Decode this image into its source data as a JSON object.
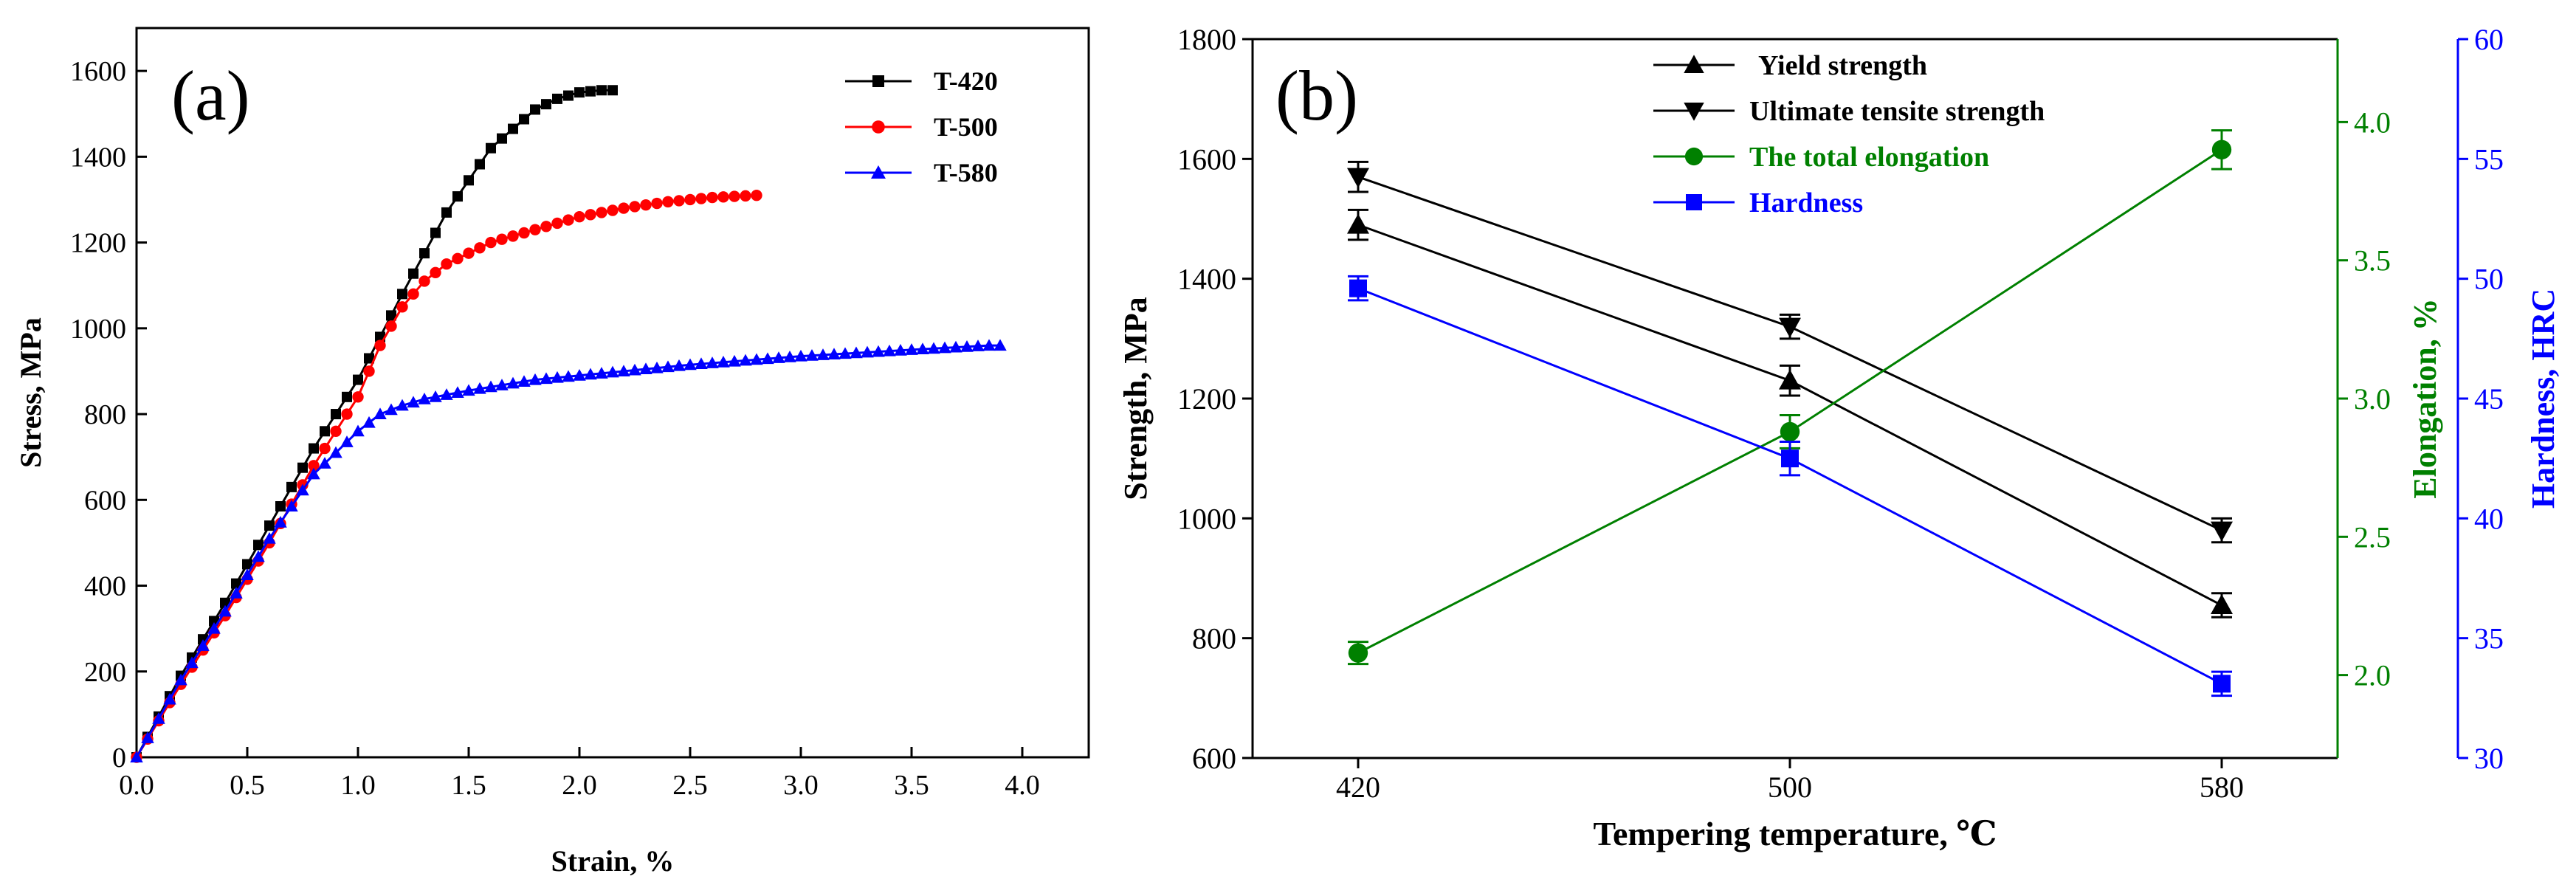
{
  "chart_data": [
    {
      "type": "line",
      "panel_label": "(a)",
      "xlabel": "Strain, %",
      "ylabel": "Stress, MPa",
      "xlim": [
        0,
        4.3
      ],
      "ylim": [
        0,
        1700
      ],
      "xticks": [
        0.0,
        0.5,
        1.0,
        1.5,
        2.0,
        2.5,
        3.0,
        3.5,
        4.0
      ],
      "xtick_labels": [
        "0.0",
        "0.5",
        "1.0",
        "1.5",
        "2.0",
        "2.5",
        "3.0",
        "3.5",
        "4.0"
      ],
      "yticks": [
        0,
        200,
        400,
        600,
        800,
        1000,
        1200,
        1400,
        1600
      ],
      "ytick_labels": [
        "0",
        "200",
        "400",
        "600",
        "800",
        "1000",
        "1200",
        "1400",
        "1600"
      ],
      "legend_position": "top-right",
      "series": [
        {
          "name": "T-420",
          "color": "#000000",
          "marker": "square",
          "x": [
            0,
            0.2,
            0.4,
            0.6,
            0.8,
            1.0,
            1.2,
            1.4,
            1.6,
            1.8,
            1.9,
            2.0,
            2.1
          ],
          "y": [
            0,
            190,
            360,
            540,
            720,
            880,
            1080,
            1270,
            1420,
            1510,
            1535,
            1550,
            1555
          ],
          "end_x": 2.15
        },
        {
          "name": "T-500",
          "color": "#ff0000",
          "marker": "circle",
          "x": [
            0,
            0.2,
            0.4,
            0.6,
            0.8,
            1.0,
            1.1,
            1.2,
            1.3,
            1.4,
            1.6,
            1.8,
            2.0,
            2.2,
            2.4,
            2.6,
            2.8
          ],
          "y": [
            0,
            170,
            330,
            500,
            680,
            840,
            960,
            1050,
            1110,
            1150,
            1200,
            1230,
            1260,
            1280,
            1295,
            1305,
            1310
          ],
          "end_x": 2.82
        },
        {
          "name": "T-580",
          "color": "#0000ff",
          "marker": "triangle",
          "x": [
            0,
            0.2,
            0.4,
            0.6,
            0.8,
            1.0,
            1.1,
            1.2,
            1.3,
            1.5,
            1.8,
            2.0,
            2.5,
            3.0,
            3.5,
            3.85
          ],
          "y": [
            0,
            180,
            340,
            510,
            660,
            760,
            800,
            820,
            835,
            855,
            880,
            890,
            915,
            935,
            950,
            960
          ],
          "end_x": 3.93
        }
      ]
    },
    {
      "type": "line",
      "panel_label": "(b)",
      "xlabel": "Tempering temperature, ℃",
      "categories": [
        "420",
        "500",
        "580"
      ],
      "y_axes": [
        {
          "label": "Strength, MPa",
          "side": "left",
          "color": "#000000",
          "range": [
            600,
            1800
          ],
          "ticks": [
            600,
            800,
            1000,
            1200,
            1400,
            1600,
            1800
          ],
          "tick_labels": [
            "600",
            "800",
            "1000",
            "1200",
            "1400",
            "1600",
            "1800"
          ]
        },
        {
          "label": "Elongation, %",
          "side": "right-inner",
          "color": "#008000",
          "range": [
            1.7,
            4.3
          ],
          "ticks": [
            2.0,
            2.5,
            3.0,
            3.5,
            4.0
          ],
          "tick_labels": [
            "2.0",
            "2.5",
            "3.0",
            "3.5",
            "4.0"
          ]
        },
        {
          "label": "Hardness, HRC",
          "side": "right-outer",
          "color": "#0000ff",
          "range": [
            30,
            60
          ],
          "ticks": [
            30,
            35,
            40,
            45,
            50,
            55,
            60
          ],
          "tick_labels": [
            "30",
            "35",
            "40",
            "45",
            "50",
            "55",
            "60"
          ]
        }
      ],
      "legend_position": "top-center",
      "series": [
        {
          "name": "Yield strength",
          "axis": 0,
          "color": "#000000",
          "marker": "triangle-up",
          "values": [
            1490,
            1230,
            855
          ],
          "errors": [
            25,
            25,
            20
          ]
        },
        {
          "name": "Ultimate tensite strength",
          "axis": 0,
          "color": "#000000",
          "marker": "triangle-down",
          "values": [
            1570,
            1320,
            980
          ],
          "errors": [
            25,
            20,
            20
          ]
        },
        {
          "name": "The total elongation",
          "axis": 1,
          "color": "#008000",
          "marker": "circle",
          "values": [
            2.08,
            2.88,
            3.9
          ],
          "errors": [
            0.04,
            0.06,
            0.07
          ]
        },
        {
          "name": "Hardness",
          "axis": 2,
          "color": "#0000ff",
          "marker": "square",
          "values": [
            49.6,
            42.5,
            33.1
          ],
          "errors": [
            0.5,
            0.7,
            0.5
          ]
        }
      ]
    }
  ]
}
